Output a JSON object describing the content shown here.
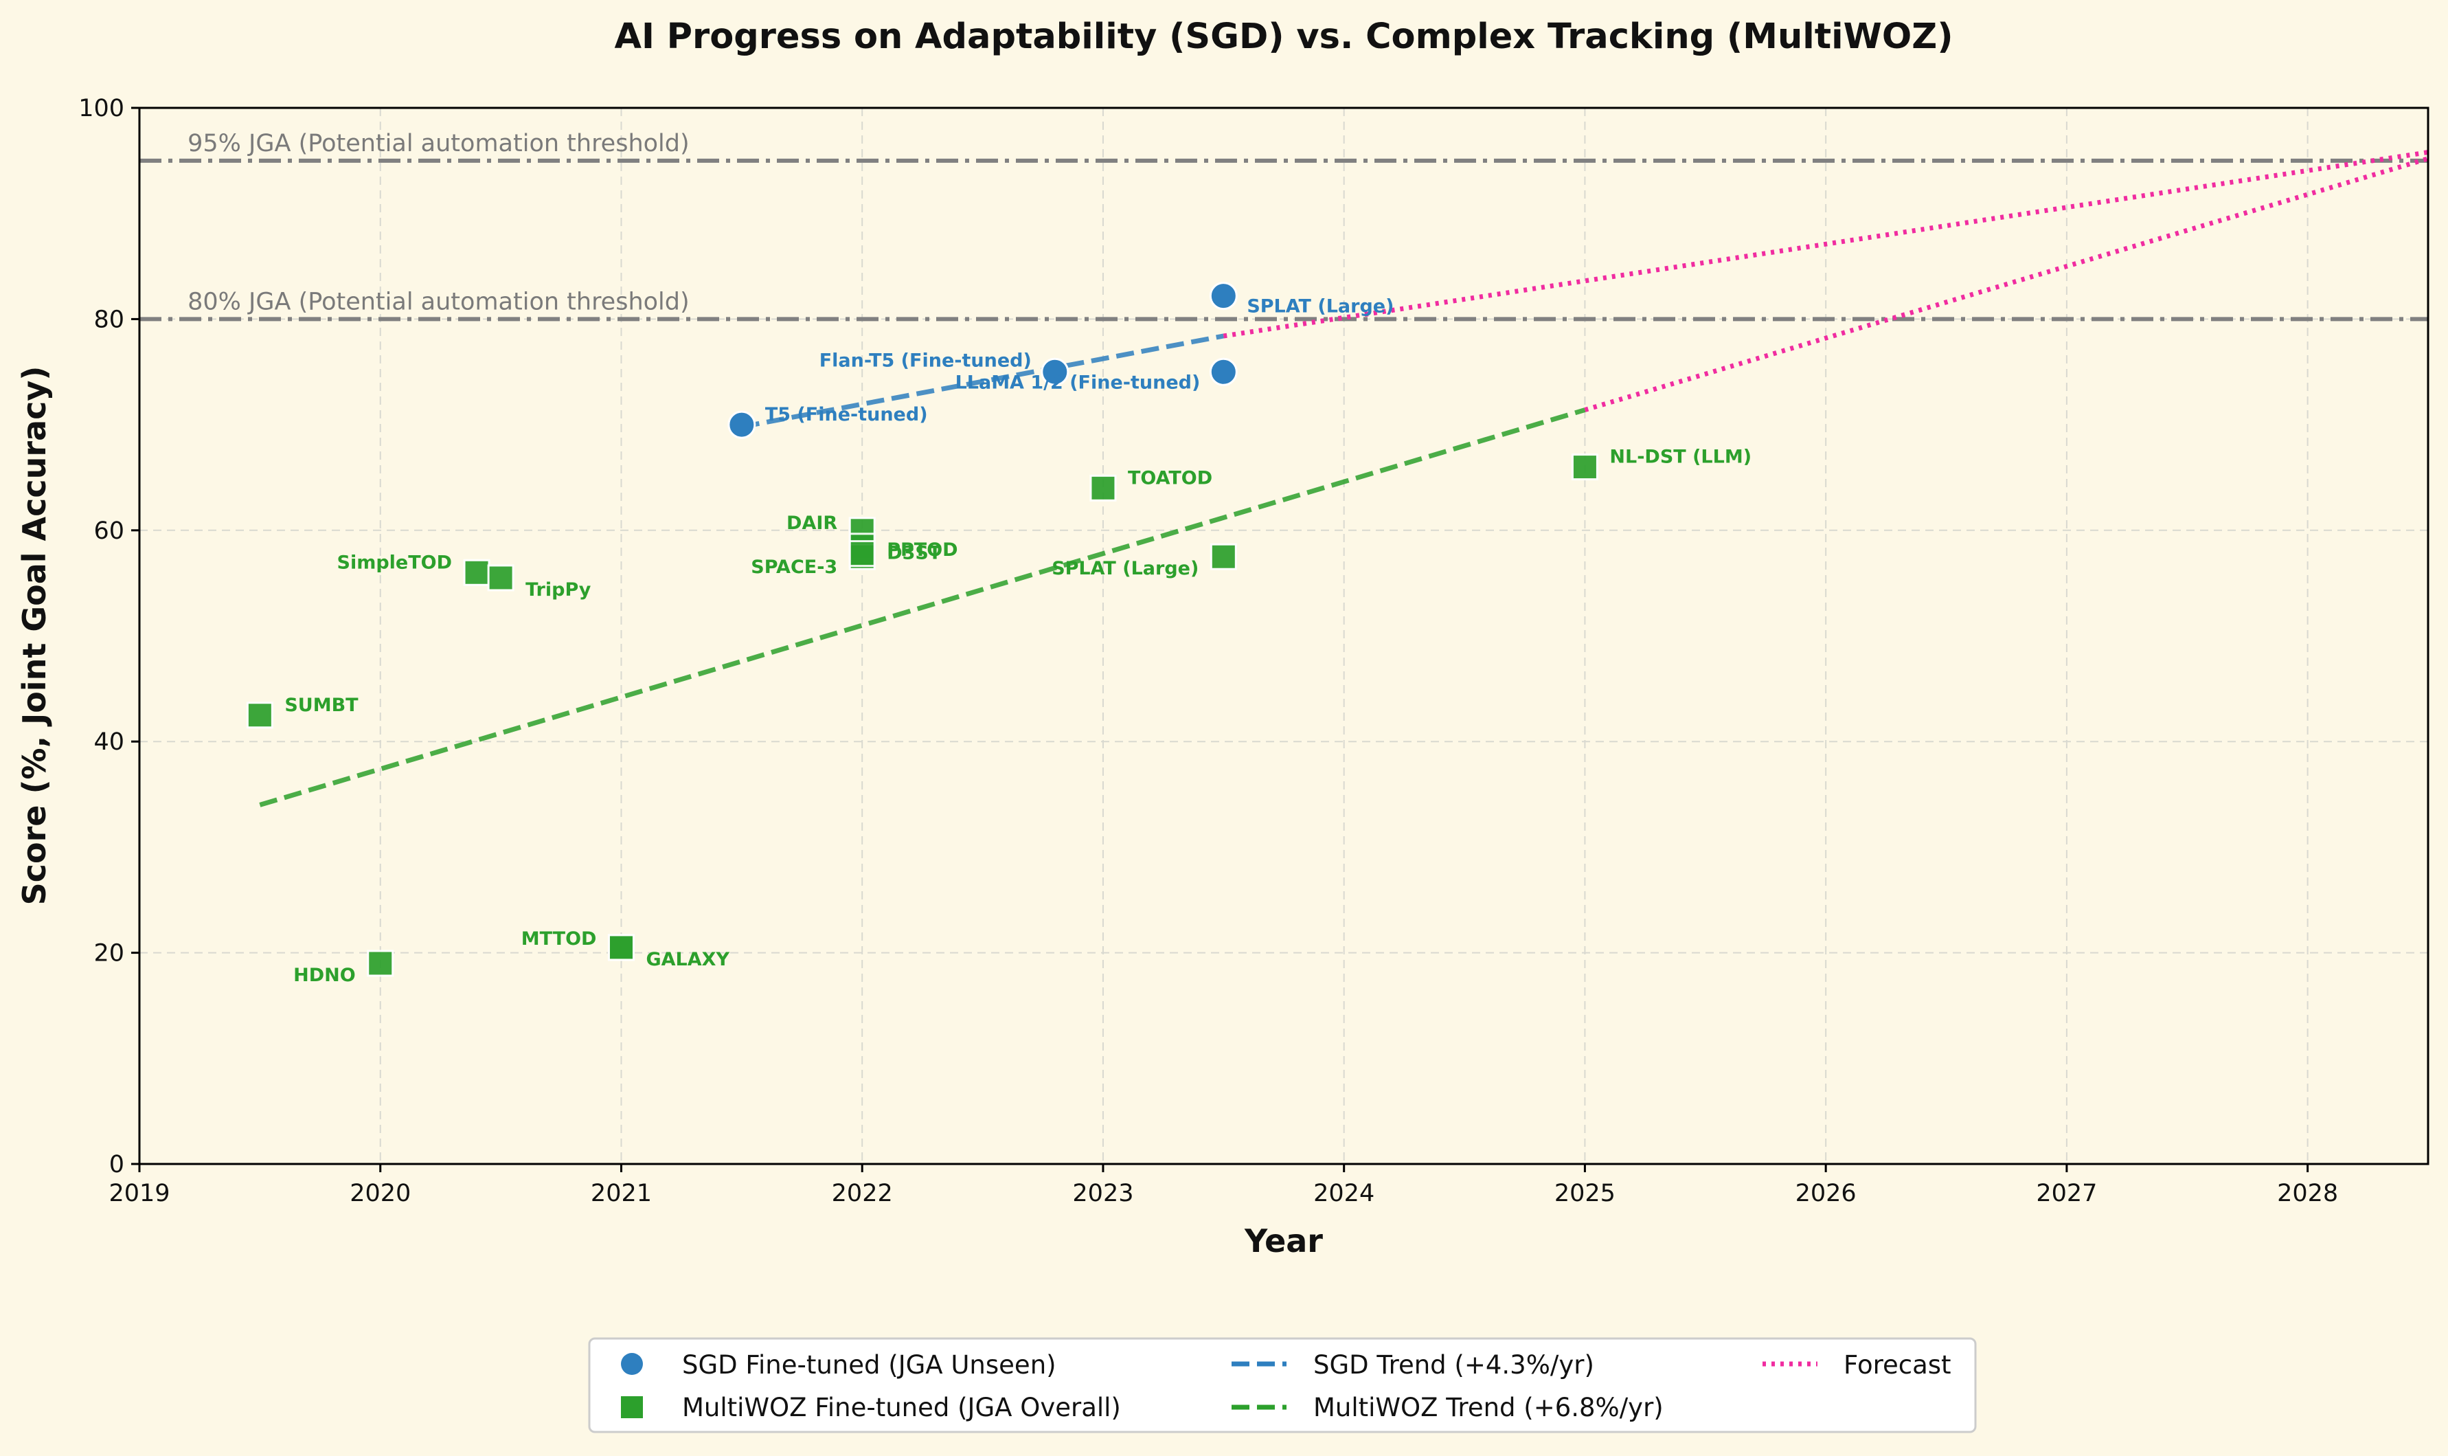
{
  "chart_data": {
    "type": "scatter",
    "title": "AI Progress on Adaptability (SGD) vs. Complex Tracking (MultiWOZ)",
    "xlabel": "Year",
    "ylabel": "Score (%, Joint Goal Accuracy)",
    "xlim": [
      2019,
      2028.5
    ],
    "ylim": [
      0,
      100
    ],
    "xticks": [
      2019,
      2020,
      2021,
      2022,
      2023,
      2024,
      2025,
      2026,
      2027,
      2028
    ],
    "yticks": [
      0,
      20,
      40,
      60,
      80,
      100
    ],
    "grid": true,
    "legend_position": "bottom-center",
    "thresholds": [
      {
        "value": 95,
        "label": "95% JGA (Potential automation threshold)"
      },
      {
        "value": 80,
        "label": "80% JGA (Potential automation threshold)"
      }
    ],
    "series": [
      {
        "name": "SGD Fine-tuned (JGA Unseen)",
        "color": "#2e7fbf",
        "marker": "circle",
        "points": [
          {
            "x": 2021.5,
            "y": 70.0,
            "label": "T5 (Fine-tuned)"
          },
          {
            "x": 2022.8,
            "y": 75.0,
            "label": "Flan-T5 (Fine-tuned)"
          },
          {
            "x": 2023.5,
            "y": 75.0,
            "label": "LLaMA 1/2 (Fine-tuned)"
          },
          {
            "x": 2023.5,
            "y": 82.2,
            "label": "SPLAT (Large)"
          }
        ]
      },
      {
        "name": "MultiWOZ Fine-tuned (JGA Overall)",
        "color": "#2ca02c",
        "marker": "square",
        "points": [
          {
            "x": 2019.5,
            "y": 42.5,
            "label": "SUMBT"
          },
          {
            "x": 2020.0,
            "y": 19.0,
            "label": "HDNO"
          },
          {
            "x": 2020.4,
            "y": 56.0,
            "label": "SimpleTOD"
          },
          {
            "x": 2020.5,
            "y": 55.5,
            "label": "TripPy"
          },
          {
            "x": 2021.0,
            "y": 20.5,
            "label": "MTTOD"
          },
          {
            "x": 2021.0,
            "y": 20.5,
            "label": "GALAXY"
          },
          {
            "x": 2022.0,
            "y": 60.0,
            "label": "DAIR"
          },
          {
            "x": 2022.0,
            "y": 58.5,
            "label": "PPTOD"
          },
          {
            "x": 2022.0,
            "y": 57.5,
            "label": "SPACE-3"
          },
          {
            "x": 2022.0,
            "y": 57.8,
            "label": "D3ST"
          },
          {
            "x": 2023.0,
            "y": 64.0,
            "label": "TOATOD"
          },
          {
            "x": 2023.5,
            "y": 57.5,
            "label": "SPLAT (Large)"
          },
          {
            "x": 2025.0,
            "y": 66.0,
            "label": "NL-DST (LLM)"
          }
        ]
      }
    ],
    "trends": [
      {
        "name": "SGD Trend (+4.3%/yr)",
        "color": "#2e7fbf",
        "x": [
          2021.5,
          2023.5
        ],
        "y": [
          69.8,
          78.4
        ]
      },
      {
        "name": "MultiWOZ Trend (+6.8%/yr)",
        "color": "#2ca02c",
        "x": [
          2019.5,
          2025.0
        ],
        "y": [
          34.0,
          71.4
        ]
      }
    ],
    "forecast": {
      "name": "Forecast",
      "color": "#f02ca0",
      "lines": [
        {
          "x": [
            2023.5,
            2028.5
          ],
          "y": [
            78.4,
            95.8
          ]
        },
        {
          "x": [
            2025.0,
            2028.5
          ],
          "y": [
            71.4,
            95.2
          ]
        }
      ]
    }
  }
}
